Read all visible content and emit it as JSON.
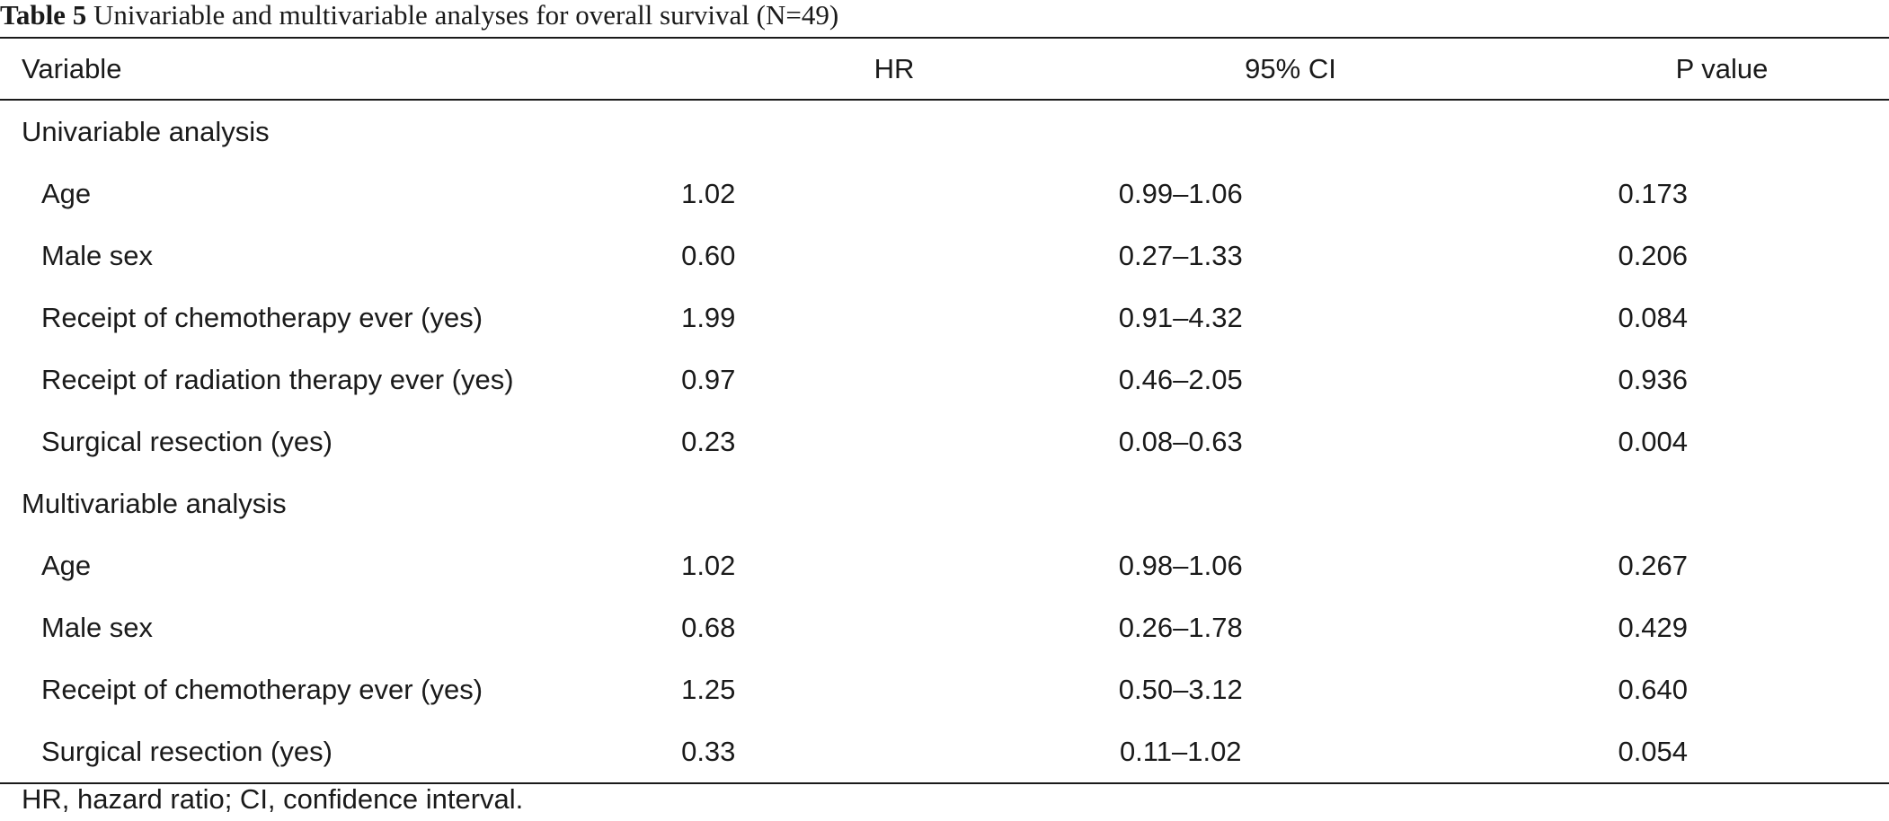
{
  "caption": {
    "label": "Table 5",
    "text": "Univariable and multivariable analyses for overall survival (N=49)"
  },
  "table": {
    "headers": [
      "Variable",
      "HR",
      "95% CI",
      "P value"
    ],
    "sections": [
      {
        "title": "Univariable analysis",
        "rows": [
          [
            "Age",
            "1.02",
            "0.99–1.06",
            "0.173"
          ],
          [
            "Male sex",
            "0.60",
            "0.27–1.33",
            "0.206"
          ],
          [
            "Receipt of chemotherapy ever (yes)",
            "1.99",
            "0.91–4.32",
            "0.084"
          ],
          [
            "Receipt of radiation therapy ever (yes)",
            "0.97",
            "0.46–2.05",
            "0.936"
          ],
          [
            "Surgical resection (yes)",
            "0.23",
            "0.08–0.63",
            "0.004"
          ]
        ]
      },
      {
        "title": "Multivariable analysis",
        "rows": [
          [
            "Age",
            "1.02",
            "0.98–1.06",
            "0.267"
          ],
          [
            "Male sex",
            "0.68",
            "0.26–1.78",
            "0.429"
          ],
          [
            "Receipt of chemotherapy ever (yes)",
            "1.25",
            "0.50–3.12",
            "0.640"
          ],
          [
            "Surgical resection (yes)",
            "0.33",
            "0.11–1.02",
            "0.054"
          ]
        ]
      }
    ]
  },
  "footnote": "HR, hazard ratio; CI, confidence interval."
}
